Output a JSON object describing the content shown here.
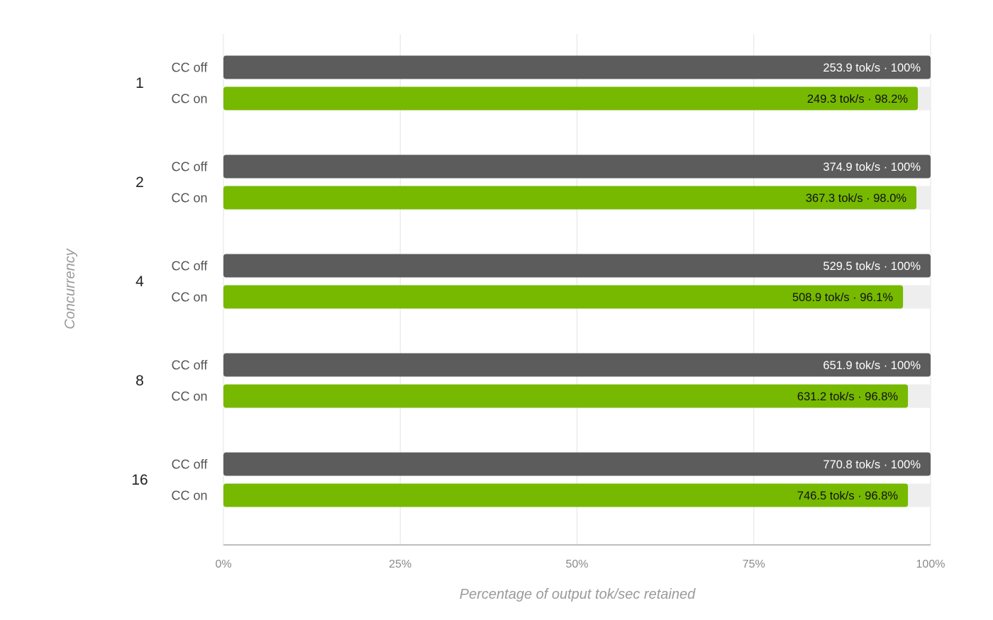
{
  "chart_data": {
    "type": "bar",
    "orientation": "horizontal",
    "title": "",
    "xlabel": "Percentage of output tok/sec retained",
    "ylabel": "Concurrency",
    "xlim": [
      0,
      100
    ],
    "x_ticks": [
      "0%",
      "25%",
      "50%",
      "75%",
      "100%"
    ],
    "x_tick_values": [
      0,
      25,
      50,
      75,
      100
    ],
    "grid": true,
    "legend": "none",
    "categories": [
      "1",
      "2",
      "4",
      "8",
      "16"
    ],
    "series": [
      {
        "name": "CC off",
        "color": "#5c5c5c",
        "label_color": "#ffffff",
        "values": [
          100,
          100,
          100,
          100,
          100
        ],
        "throughput": [
          253.9,
          374.9,
          529.5,
          651.9,
          770.8
        ],
        "labels": [
          "253.9 tok/s · 100%",
          "374.9 tok/s · 100%",
          "529.5 tok/s · 100%",
          "651.9 tok/s · 100%",
          "770.8 tok/s · 100%"
        ]
      },
      {
        "name": "CC on",
        "color": "#76b900",
        "label_color": "#111111",
        "values": [
          98.2,
          98.0,
          96.1,
          96.8,
          96.8
        ],
        "throughput": [
          249.3,
          367.3,
          508.9,
          631.2,
          746.5
        ],
        "labels": [
          "249.3 tok/s · 98.2%",
          "367.3 tok/s · 98.0%",
          "508.9 tok/s · 96.1%",
          "631.2 tok/s · 96.8%",
          "746.5 tok/s · 96.8%"
        ]
      }
    ],
    "track_color": "#eeeeee"
  }
}
